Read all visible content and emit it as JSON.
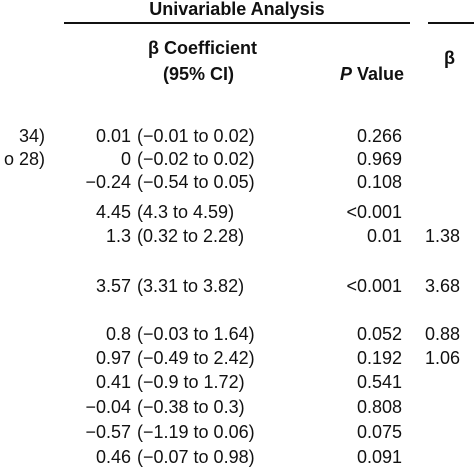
{
  "header": {
    "group": "Univariable Analysis",
    "beta_line1": "β Coefficient",
    "beta_line2": "(95% CI)",
    "p_italic": "P",
    "p_rest": "Value",
    "right_beta": "β"
  },
  "left_fragments": [
    "34)",
    "o 28)"
  ],
  "rows": [
    {
      "coef": "0.01",
      "ci": "(−0.01 to 0.02)",
      "p": "0.266"
    },
    {
      "coef": "0",
      "ci": "(−0.02 to 0.02)",
      "p": "0.969"
    },
    {
      "coef": "−0.24",
      "ci": "(−0.54 to 0.05)",
      "p": "0.108"
    },
    {
      "coef": "4.45",
      "ci": "(4.3 to 4.59)",
      "p": "<0.001"
    },
    {
      "coef": "1.3",
      "ci": "(0.32 to 2.28)",
      "p": "0.01",
      "right": "1.38"
    },
    {
      "coef": "3.57",
      "ci": "(3.31 to 3.82)",
      "p": "<0.001",
      "right": "3.68"
    },
    {
      "coef": "0.8",
      "ci": "(−0.03 to 1.64)",
      "p": "0.052",
      "right": "0.88"
    },
    {
      "coef": "0.97",
      "ci": "(−0.49 to 2.42)",
      "p": "0.192",
      "right": "1.06"
    },
    {
      "coef": "0.41",
      "ci": "(−0.9 to 1.72)",
      "p": "0.541"
    },
    {
      "coef": "−0.04",
      "ci": "(−0.38 to 0.3)",
      "p": "0.808"
    },
    {
      "coef": "−0.57",
      "ci": "(−1.19 to 0.06)",
      "p": "0.075"
    },
    {
      "coef": "0.46",
      "ci": "(−0.07 to 0.98)",
      "p": "0.091"
    }
  ]
}
